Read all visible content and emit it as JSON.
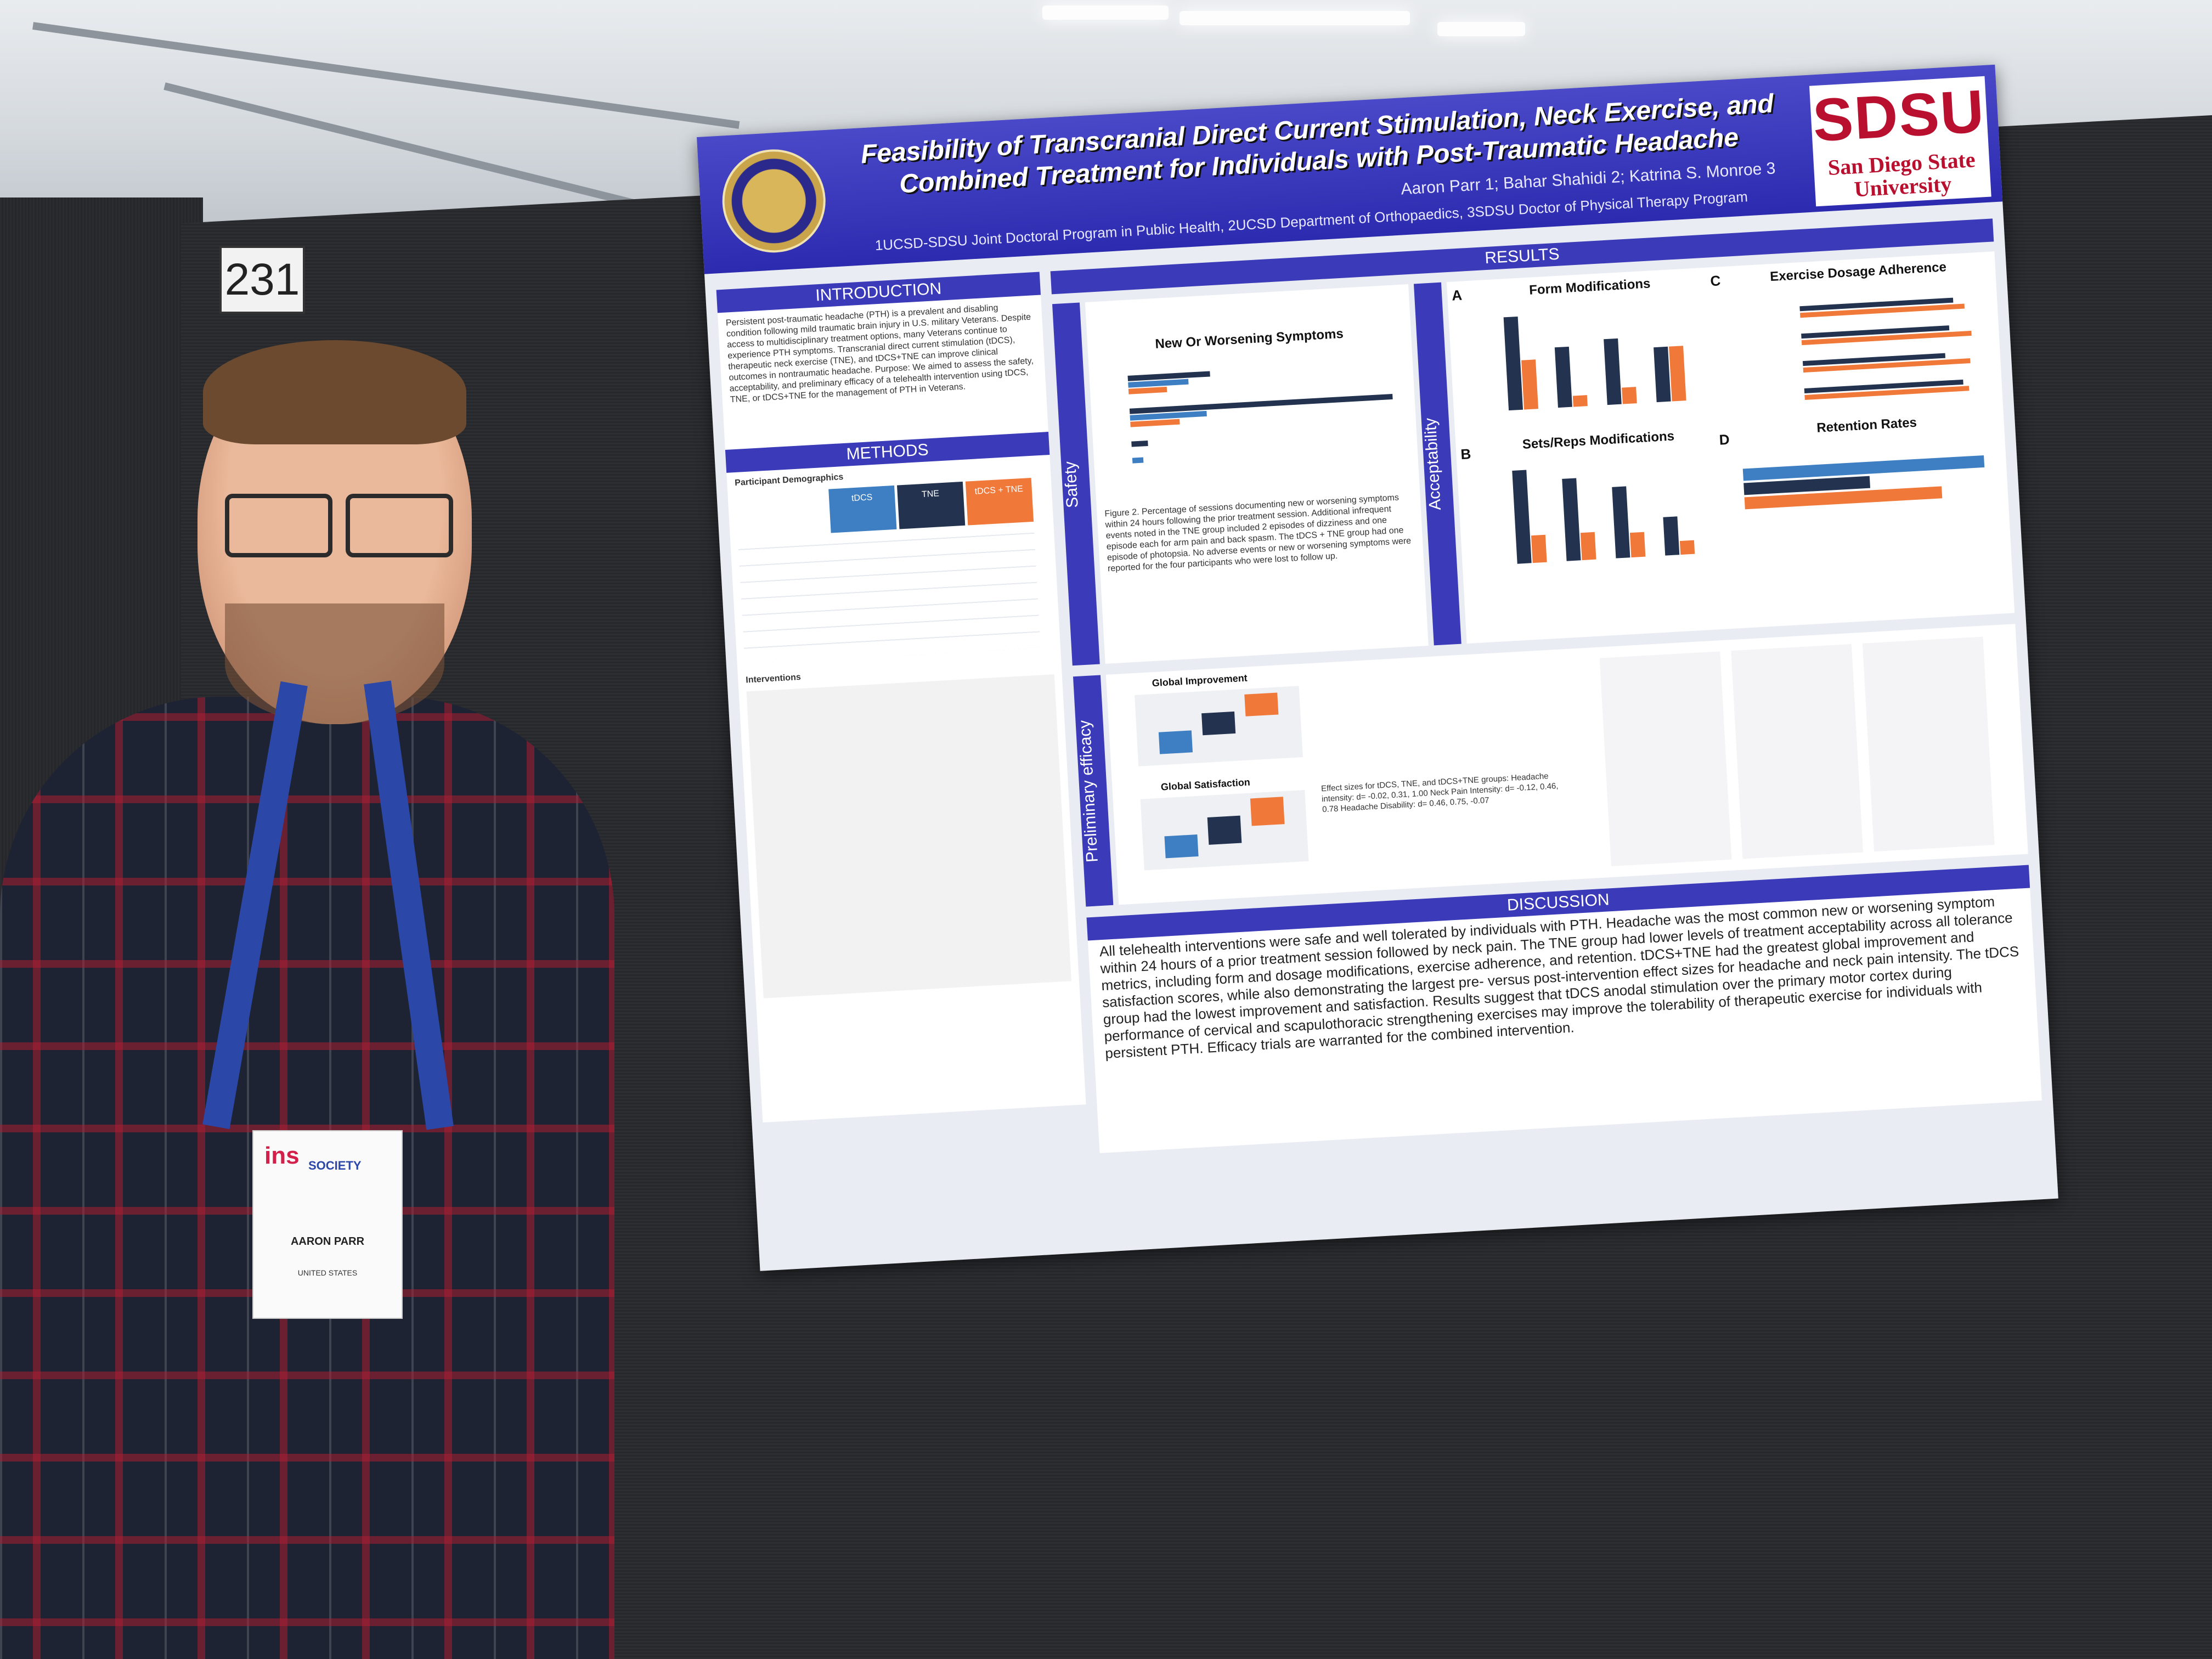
{
  "scene": {
    "booth_number": "231"
  },
  "poster": {
    "title": "Feasibility of Transcranial Direct Current Stimulation, Neck Exercise, and Combined Treatment for Individuals with Post-Traumatic Headache",
    "authors": "Aaron Parr 1; Bahar Shahidi 2; Katrina S. Monroe 3",
    "affiliations": "1UCSD-SDSU Joint Doctoral Program in Public Health, 2UCSD Department of Orthopaedics, 3SDSU Doctor of Physical Therapy Program",
    "logo": {
      "mark": "SDSU",
      "name": "San Diego State University"
    },
    "sections": {
      "introduction": "INTRODUCTION",
      "methods": "METHODS",
      "results": "RESULTS",
      "discussion": "DISCUSSION",
      "safety": "Safety",
      "acceptability": "Acceptability",
      "efficacy": "Preliminary efficacy"
    },
    "intro_text": "Persistent post-traumatic headache (PTH) is a prevalent and disabling condition following mild traumatic brain injury in U.S. military Veterans. Despite access to multidisciplinary treatment options, many Veterans continue to experience PTH symptoms. Transcranial direct current stimulation (tDCS), therapeutic neck exercise (TNE), and tDCS+TNE can improve clinical outcomes in nontraumatic headache. Purpose: We aimed to assess the safety, acceptability, and preliminary efficacy of a telehealth intervention using tDCS, TNE, or tDCS+TNE for the management of PTH in Veterans.",
    "methods_heading": "Participant Demographics",
    "table_headers": [
      "tDCS",
      "TNE",
      "tDCS + TNE"
    ],
    "interventions_heading": "Interventions",
    "charts": {
      "safety_title": "New Or Worsening Symptoms",
      "form_title": "Form Modifications",
      "sets_title": "Sets/Reps Modifications",
      "exercise_title": "Exercise Dosage Adherence",
      "retention_title": "Retention Rates",
      "global_improvement": "Global Improvement",
      "global_satisfaction": "Global Satisfaction"
    },
    "panel_letters": [
      "A",
      "B",
      "C",
      "D"
    ],
    "figure2_text": "Figure 2. Percentage of sessions documenting new or worsening symptoms within 24 hours following the prior treatment session. Additional infrequent events noted in the TNE group included 2 episodes of dizziness and one episode each for arm pain and back spasm. The tDCS + TNE group had one episode of photopsia. No adverse events or new or worsening symptoms were reported for the four participants who were lost to follow up.",
    "effect_sizes": "Effect sizes for tDCS, TNE, and tDCS+TNE groups: Headache intensity: d= -0.02, 0.31, 1.00  Neck Pain Intensity: d= -0.12, 0.46, 0.78  Headache Disability: d= 0.46, 0.75, -0.07",
    "discussion_text": "All telehealth interventions were safe and well tolerated by individuals with PTH. Headache was the most common new or worsening symptom within 24 hours of a prior treatment session followed by neck pain. The TNE group had lower levels of treatment acceptability across all tolerance metrics, including form and dosage modifications, exercise adherence, and retention. tDCS+TNE had the greatest global improvement and satisfaction scores, while also demonstrating the largest pre- versus post-intervention effect sizes for headache and neck pain intensity. The tDCS group had the lowest improvement and satisfaction. Results suggest that tDCS anodal stimulation over the primary motor cortex during performance of cervical and scapulothoracic strengthening exercises may improve the tolerability of therapeutic exercise for individuals with persistent PTH. Efficacy trials are warranted for the combined intervention."
  },
  "badge": {
    "org": "ins",
    "society": "SOCIETY",
    "name": "AARON PARR",
    "country": "UNITED STATES"
  }
}
